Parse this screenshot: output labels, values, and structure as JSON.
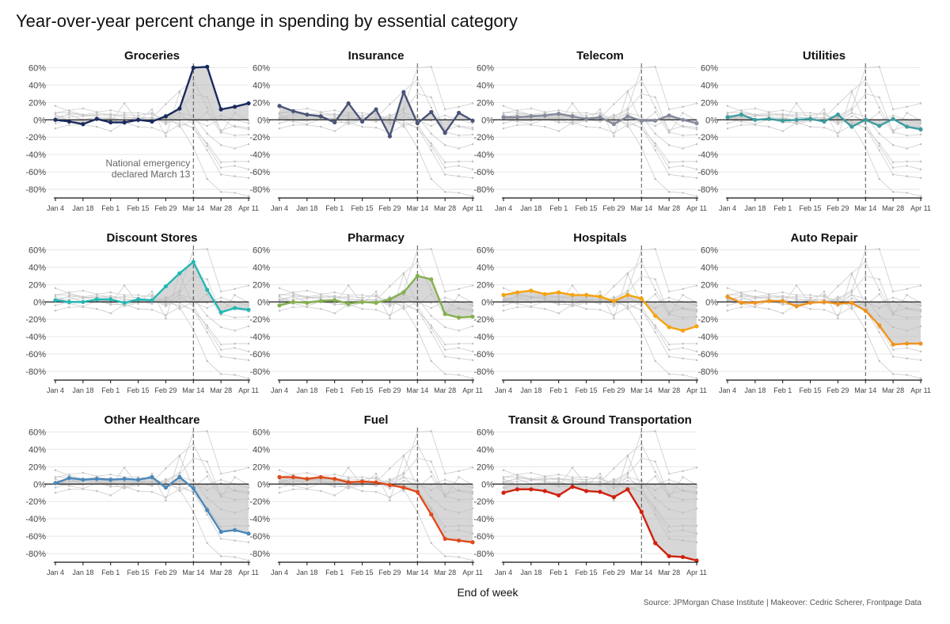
{
  "title": "Year-over-year percent change in spending by essential category",
  "xlabel": "End of week",
  "source": "Source: JPMorgan Chase Institute | Makeover: Cedric Scherer, Frontpage Data",
  "annotation": "National emergency\ndeclared March 13",
  "chart_data": {
    "type": "line",
    "x_labels": [
      "Jan 4",
      "Jan 18",
      "Feb 1",
      "Feb 15",
      "Feb 29",
      "Mar 14",
      "Mar 28",
      "Apr 11"
    ],
    "x": [
      "Jan 4",
      "Jan 11",
      "Jan 18",
      "Jan 25",
      "Feb 1",
      "Feb 8",
      "Feb 15",
      "Feb 22",
      "Feb 29",
      "Mar 7",
      "Mar 14",
      "Mar 21",
      "Mar 28",
      "Apr 4",
      "Apr 11"
    ],
    "ylim": [
      -90,
      65
    ],
    "y_ticks": [
      60,
      40,
      20,
      0,
      -20,
      -40,
      -60,
      -80
    ],
    "y_tick_labels": [
      "60%",
      "40%",
      "20%",
      "0%",
      "-20%",
      "-40%",
      "-60%",
      "-80%"
    ],
    "event_line_x": "Mar 14",
    "grid": true,
    "panels": [
      {
        "name": "Groceries",
        "color": "#1a2a5e",
        "values": [
          0,
          -2,
          -5,
          1,
          -3,
          -3,
          0,
          -2,
          4,
          13,
          60,
          61,
          12,
          15,
          19
        ]
      },
      {
        "name": "Insurance",
        "color": "#4b5478",
        "values": [
          16,
          10,
          6,
          4,
          -3,
          19,
          -2,
          12,
          -19,
          32,
          -4,
          9,
          -15,
          8,
          -1
        ]
      },
      {
        "name": "Telecom",
        "color": "#868a9c",
        "values": [
          3,
          3,
          4,
          5,
          7,
          4,
          1,
          3,
          -5,
          4,
          -1,
          -1,
          5,
          0,
          -4
        ]
      },
      {
        "name": "Utilities",
        "color": "#3e9c9e",
        "values": [
          3,
          6,
          0,
          1,
          -1,
          0,
          1,
          -2,
          6,
          -8,
          0,
          -7,
          1,
          -8,
          -11
        ]
      },
      {
        "name": "Discount Stores",
        "color": "#22b8b4",
        "values": [
          2,
          0,
          0,
          3,
          3,
          -1,
          3,
          2,
          18,
          33,
          46,
          14,
          -12,
          -7,
          -9
        ]
      },
      {
        "name": "Pharmacy",
        "color": "#84b04e",
        "values": [
          -4,
          0,
          -1,
          1,
          2,
          -2,
          0,
          -1,
          3,
          11,
          30,
          26,
          -14,
          -18,
          -17
        ]
      },
      {
        "name": "Hospitals",
        "color": "#f5a30e",
        "values": [
          8,
          11,
          13,
          9,
          11,
          8,
          8,
          6,
          1,
          8,
          4,
          -16,
          -29,
          -33,
          -28
        ]
      },
      {
        "name": "Auto Repair",
        "color": "#f0921d",
        "values": [
          6,
          -1,
          -1,
          1,
          1,
          -5,
          -1,
          0,
          -2,
          -1,
          -10,
          -27,
          -49,
          -48,
          -48
        ]
      },
      {
        "name": "Other Healthcare",
        "color": "#4a88bb",
        "values": [
          1,
          7,
          5,
          6,
          5,
          6,
          5,
          8,
          -4,
          8,
          -5,
          -30,
          -55,
          -53,
          -57
        ]
      },
      {
        "name": "Fuel",
        "color": "#e04a1a",
        "values": [
          8,
          8,
          6,
          8,
          6,
          2,
          3,
          2,
          -1,
          -4,
          -9,
          -35,
          -63,
          -65,
          -67
        ]
      },
      {
        "name": "Transit & Ground Transportation",
        "color": "#d0200e",
        "values": [
          -10,
          -6,
          -6,
          -8,
          -13,
          -3,
          -8,
          -9,
          -15,
          -6,
          -32,
          -68,
          -83,
          -84,
          -88
        ]
      }
    ]
  }
}
